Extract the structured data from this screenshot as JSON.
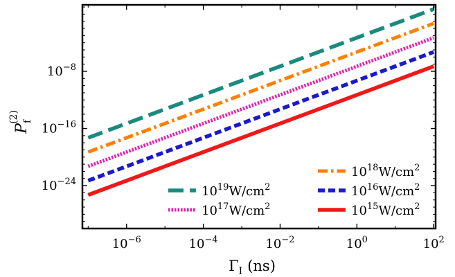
{
  "chart_data": {
    "type": "line",
    "title": "",
    "xscale": "log",
    "yscale": "log",
    "xlim_log10": [
      -7.15,
      2.05
    ],
    "ylim_log10": [
      -30.0,
      1.3
    ],
    "xlabel": "Γ",
    "xlabel_sub": "I",
    "xlabel_unit": "(ns)",
    "ylabel": "P",
    "ylabel_sub": "f",
    "ylabel_sup": "(2)",
    "x_ticks": [
      {
        "exp": -6,
        "base": "10",
        "sup": "−6"
      },
      {
        "exp": -4,
        "base": "10",
        "sup": "−4"
      },
      {
        "exp": -2,
        "base": "10",
        "sup": "−2"
      },
      {
        "exp": 0,
        "base": "10",
        "sup": "0"
      },
      {
        "exp": 2,
        "base": "10",
        "sup": "2"
      }
    ],
    "y_ticks": [
      {
        "exp": -8,
        "base": "10",
        "sup": "−8"
      },
      {
        "exp": -16,
        "base": "10",
        "sup": "−16"
      },
      {
        "exp": -24,
        "base": "10",
        "sup": "−24"
      }
    ],
    "series": [
      {
        "name": "10^19 W/cm^2",
        "label_base": "10",
        "label_sup": "19",
        "label_unit": "W/cm",
        "label_unit_sup": "2",
        "color": "#1a8a7e",
        "dash": "dashed",
        "x_log10": [
          -7.0,
          2.0
        ],
        "y_log10": [
          -17.3,
          0.7
        ]
      },
      {
        "name": "10^18 W/cm^2",
        "label_base": "10",
        "label_sup": "18",
        "label_unit": "W/cm",
        "label_unit_sup": "2",
        "color": "#ff8000",
        "dash": "dashdot",
        "x_log10": [
          -7.0,
          2.0
        ],
        "y_log10": [
          -19.3,
          -1.3
        ]
      },
      {
        "name": "10^17 W/cm^2",
        "label_base": "10",
        "label_sup": "17",
        "label_unit": "W/cm",
        "label_unit_sup": "2",
        "color": "#e020b0",
        "dash": "dotted",
        "x_log10": [
          -7.0,
          2.0
        ],
        "y_log10": [
          -21.3,
          -3.3
        ]
      },
      {
        "name": "10^16 W/cm^2",
        "label_base": "10",
        "label_sup": "16",
        "label_unit": "W/cm",
        "label_unit_sup": "2",
        "color": "#1a1acc",
        "dash": "dashed-short",
        "x_log10": [
          -7.0,
          2.0
        ],
        "y_log10": [
          -23.3,
          -5.3
        ]
      },
      {
        "name": "10^15 W/cm^2",
        "label_base": "10",
        "label_sup": "15",
        "label_unit": "W/cm",
        "label_unit_sup": "2",
        "color": "#f01818",
        "dash": "solid",
        "x_log10": [
          -7.0,
          2.0
        ],
        "y_log10": [
          -25.3,
          -7.3
        ]
      }
    ],
    "legend": {
      "placement": "lower-right",
      "columns": 2,
      "order": [
        1,
        0,
        3,
        2,
        4
      ]
    },
    "grid": false
  }
}
